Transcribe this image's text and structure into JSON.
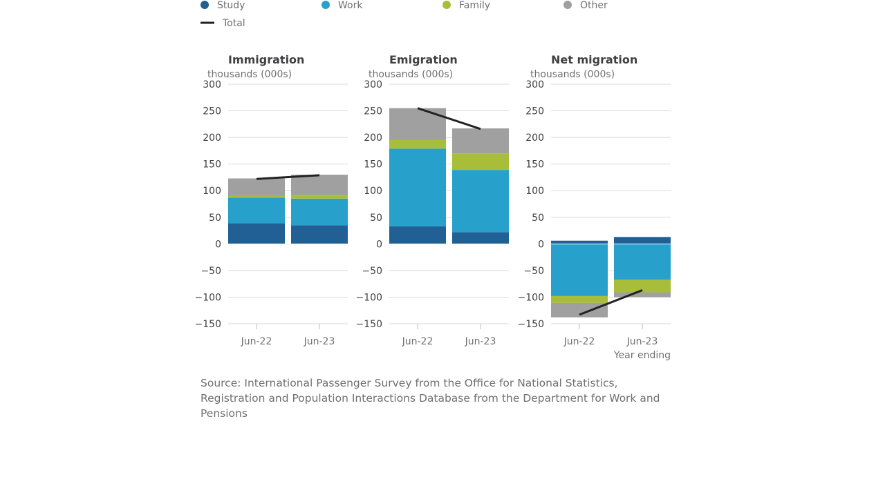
{
  "legend": {
    "items": [
      {
        "label": "Study",
        "color": "#206095",
        "kind": "dot"
      },
      {
        "label": "Work",
        "color": "#27a0cc",
        "kind": "dot"
      },
      {
        "label": "Family",
        "color": "#a8bd3a",
        "kind": "dot"
      },
      {
        "label": "Other",
        "color": "#a0a0a0",
        "kind": "dot"
      },
      {
        "label": "Total",
        "color": "#222222",
        "kind": "line"
      }
    ]
  },
  "source_text": "Source: International Passenger Survey from the Office for National Statistics, Registration and Population Interactions Database from the Department for Work and Pensions",
  "chart_data": [
    {
      "type": "bar",
      "stacked": true,
      "title": "Immigration",
      "ylabel": "thousands (000s)",
      "xlabel": "",
      "ylim": [
        -150,
        300
      ],
      "yticks": [
        300,
        250,
        200,
        150,
        100,
        50,
        0,
        -50,
        -100,
        -150
      ],
      "categories": [
        "Jun-22",
        "Jun-23"
      ],
      "series": [
        {
          "name": "Study",
          "color": "#206095",
          "values": [
            39,
            35
          ]
        },
        {
          "name": "Work",
          "color": "#27a0cc",
          "values": [
            48,
            50
          ]
        },
        {
          "name": "Family",
          "color": "#a8bd3a",
          "values": [
            3,
            7
          ]
        },
        {
          "name": "Other",
          "color": "#a0a0a0",
          "values": [
            33,
            38
          ]
        }
      ],
      "total": {
        "name": "Total",
        "values": [
          122,
          129
        ]
      }
    },
    {
      "type": "bar",
      "stacked": true,
      "title": "Emigration",
      "ylabel": "thousands (000s)",
      "xlabel": "",
      "ylim": [
        -150,
        300
      ],
      "yticks": [
        300,
        250,
        200,
        150,
        100,
        50,
        0,
        -50,
        -100,
        -150
      ],
      "categories": [
        "Jun-22",
        "Jun-23"
      ],
      "series": [
        {
          "name": "Study",
          "color": "#206095",
          "values": [
            33,
            22
          ]
        },
        {
          "name": "Work",
          "color": "#27a0cc",
          "values": [
            146,
            117
          ]
        },
        {
          "name": "Family",
          "color": "#a8bd3a",
          "values": [
            16,
            31
          ]
        },
        {
          "name": "Other",
          "color": "#a0a0a0",
          "values": [
            60,
            47
          ]
        }
      ],
      "total": {
        "name": "Total",
        "values": [
          255,
          216
        ]
      }
    },
    {
      "type": "bar",
      "stacked": true,
      "title": "Net migration",
      "ylabel": "thousands (000s)",
      "xlabel": "Year ending",
      "ylim": [
        -150,
        300
      ],
      "yticks": [
        300,
        250,
        200,
        150,
        100,
        50,
        0,
        -50,
        -100,
        -150
      ],
      "categories": [
        "Jun-22",
        "Jun-23"
      ],
      "series": [
        {
          "name": "Study",
          "color": "#206095",
          "values": [
            6,
            13
          ]
        },
        {
          "name": "Work",
          "color": "#27a0cc",
          "values": [
            -98,
            -67
          ]
        },
        {
          "name": "Family",
          "color": "#a8bd3a",
          "values": [
            -13,
            -24
          ]
        },
        {
          "name": "Other",
          "color": "#a0a0a0",
          "values": [
            -27,
            -9
          ]
        }
      ],
      "total": {
        "name": "Total",
        "values": [
          -133,
          -87
        ]
      }
    }
  ]
}
